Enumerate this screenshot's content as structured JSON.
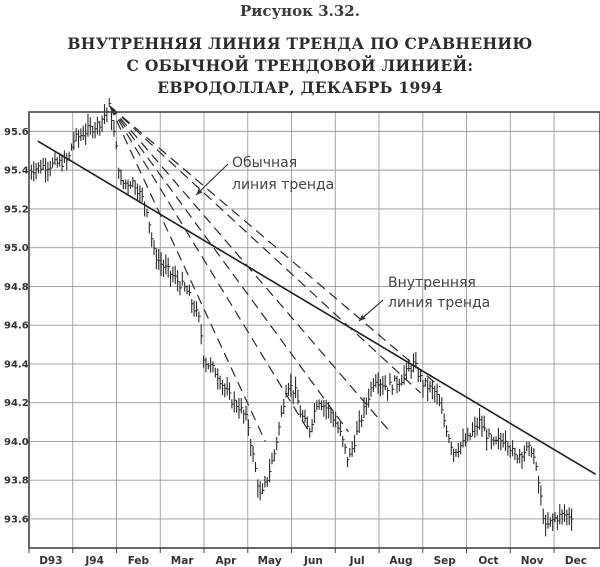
{
  "figure_label": "Рисунок 3.32.",
  "title_lines": [
    "ВНУТРЕННЯЯ ЛИНИЯ ТРЕНДА ПО СРАВНЕНИЮ",
    "С ОБЫЧНОЙ ТРЕНДОВОЙ ЛИНИЕЙ:",
    "ЕВРОДОЛЛАР, ДЕКАБРЬ 1994"
  ],
  "annotations": {
    "normal_line": [
      "Обычная",
      "линия тренда"
    ],
    "internal_line": [
      "Внутренняя",
      "линия тренда"
    ]
  },
  "chart_data": {
    "type": "line",
    "title": "ВНУТРЕННЯЯ ЛИНИЯ ТРЕНДА ПО СРАВНЕНИЮ С ОБЫЧНОЙ ТРЕНДОВОЙ ЛИНИЕЙ: ЕВРОДОЛЛАР, ДЕКАБРЬ 1994",
    "x_tick_labels": [
      "D93",
      "J94",
      "Feb",
      "Mar",
      "Apr",
      "May",
      "Jun",
      "Jul",
      "Aug",
      "Sep",
      "Oct",
      "Nov",
      "Dec"
    ],
    "y_tick_labels": [
      "95.6",
      "95.4",
      "95.2",
      "95.0",
      "94.8",
      "94.6",
      "94.4",
      "94.2",
      "94.0",
      "93.8",
      "93.6"
    ],
    "y_ticks": [
      95.6,
      95.4,
      95.2,
      95.0,
      94.8,
      94.6,
      94.4,
      94.2,
      94.0,
      93.8,
      93.6
    ],
    "xlim": [
      0,
      13.05
    ],
    "ylim": [
      93.45,
      95.7
    ],
    "grid": true,
    "price_path": [
      [
        0.0,
        95.4
      ],
      [
        0.3,
        95.42
      ],
      [
        0.6,
        95.43
      ],
      [
        0.9,
        95.45
      ],
      [
        1.0,
        95.55
      ],
      [
        1.3,
        95.6
      ],
      [
        1.6,
        95.64
      ],
      [
        1.85,
        95.73
      ],
      [
        2.0,
        95.5
      ],
      [
        2.1,
        95.33
      ],
      [
        2.4,
        95.34
      ],
      [
        2.7,
        95.2
      ],
      [
        2.85,
        94.98
      ],
      [
        3.0,
        94.92
      ],
      [
        3.3,
        94.85
      ],
      [
        3.6,
        94.78
      ],
      [
        3.9,
        94.62
      ],
      [
        4.0,
        94.42
      ],
      [
        4.3,
        94.35
      ],
      [
        4.6,
        94.22
      ],
      [
        4.8,
        94.18
      ],
      [
        5.0,
        94.1
      ],
      [
        5.1,
        93.95
      ],
      [
        5.3,
        93.7
      ],
      [
        5.6,
        93.93
      ],
      [
        5.9,
        94.3
      ],
      [
        6.1,
        94.25
      ],
      [
        6.2,
        94.15
      ],
      [
        6.4,
        94.05
      ],
      [
        6.6,
        94.22
      ],
      [
        6.9,
        94.15
      ],
      [
        7.1,
        94.05
      ],
      [
        7.3,
        93.9
      ],
      [
        7.6,
        94.12
      ],
      [
        7.9,
        94.33
      ],
      [
        8.2,
        94.28
      ],
      [
        8.5,
        94.32
      ],
      [
        8.8,
        94.4
      ],
      [
        9.0,
        94.3
      ],
      [
        9.3,
        94.25
      ],
      [
        9.5,
        94.1
      ],
      [
        9.7,
        93.95
      ],
      [
        10.0,
        94.0
      ],
      [
        10.3,
        94.1
      ],
      [
        10.6,
        93.98
      ],
      [
        10.9,
        94.02
      ],
      [
        11.1,
        93.92
      ],
      [
        11.3,
        93.95
      ],
      [
        11.5,
        93.96
      ],
      [
        11.65,
        93.78
      ],
      [
        11.8,
        93.55
      ],
      [
        12.0,
        93.6
      ],
      [
        12.2,
        93.62
      ],
      [
        12.4,
        93.62
      ]
    ],
    "normal_trendline": [
      [
        0.2,
        95.55
      ],
      [
        12.95,
        93.83
      ]
    ],
    "internal_trendlines": [
      [
        [
          1.85,
          95.73
        ],
        [
          5.4,
          94.0
        ]
      ],
      [
        [
          1.85,
          95.73
        ],
        [
          6.4,
          94.05
        ]
      ],
      [
        [
          1.85,
          95.73
        ],
        [
          7.3,
          94.05
        ]
      ],
      [
        [
          1.85,
          95.73
        ],
        [
          8.25,
          94.05
        ]
      ],
      [
        [
          1.85,
          95.73
        ],
        [
          8.95,
          94.25
        ]
      ],
      [
        [
          1.85,
          95.73
        ],
        [
          9.4,
          94.28
        ]
      ]
    ],
    "annotations": [
      "Обычная линия тренда",
      "Внутренняя линия тренда"
    ]
  }
}
